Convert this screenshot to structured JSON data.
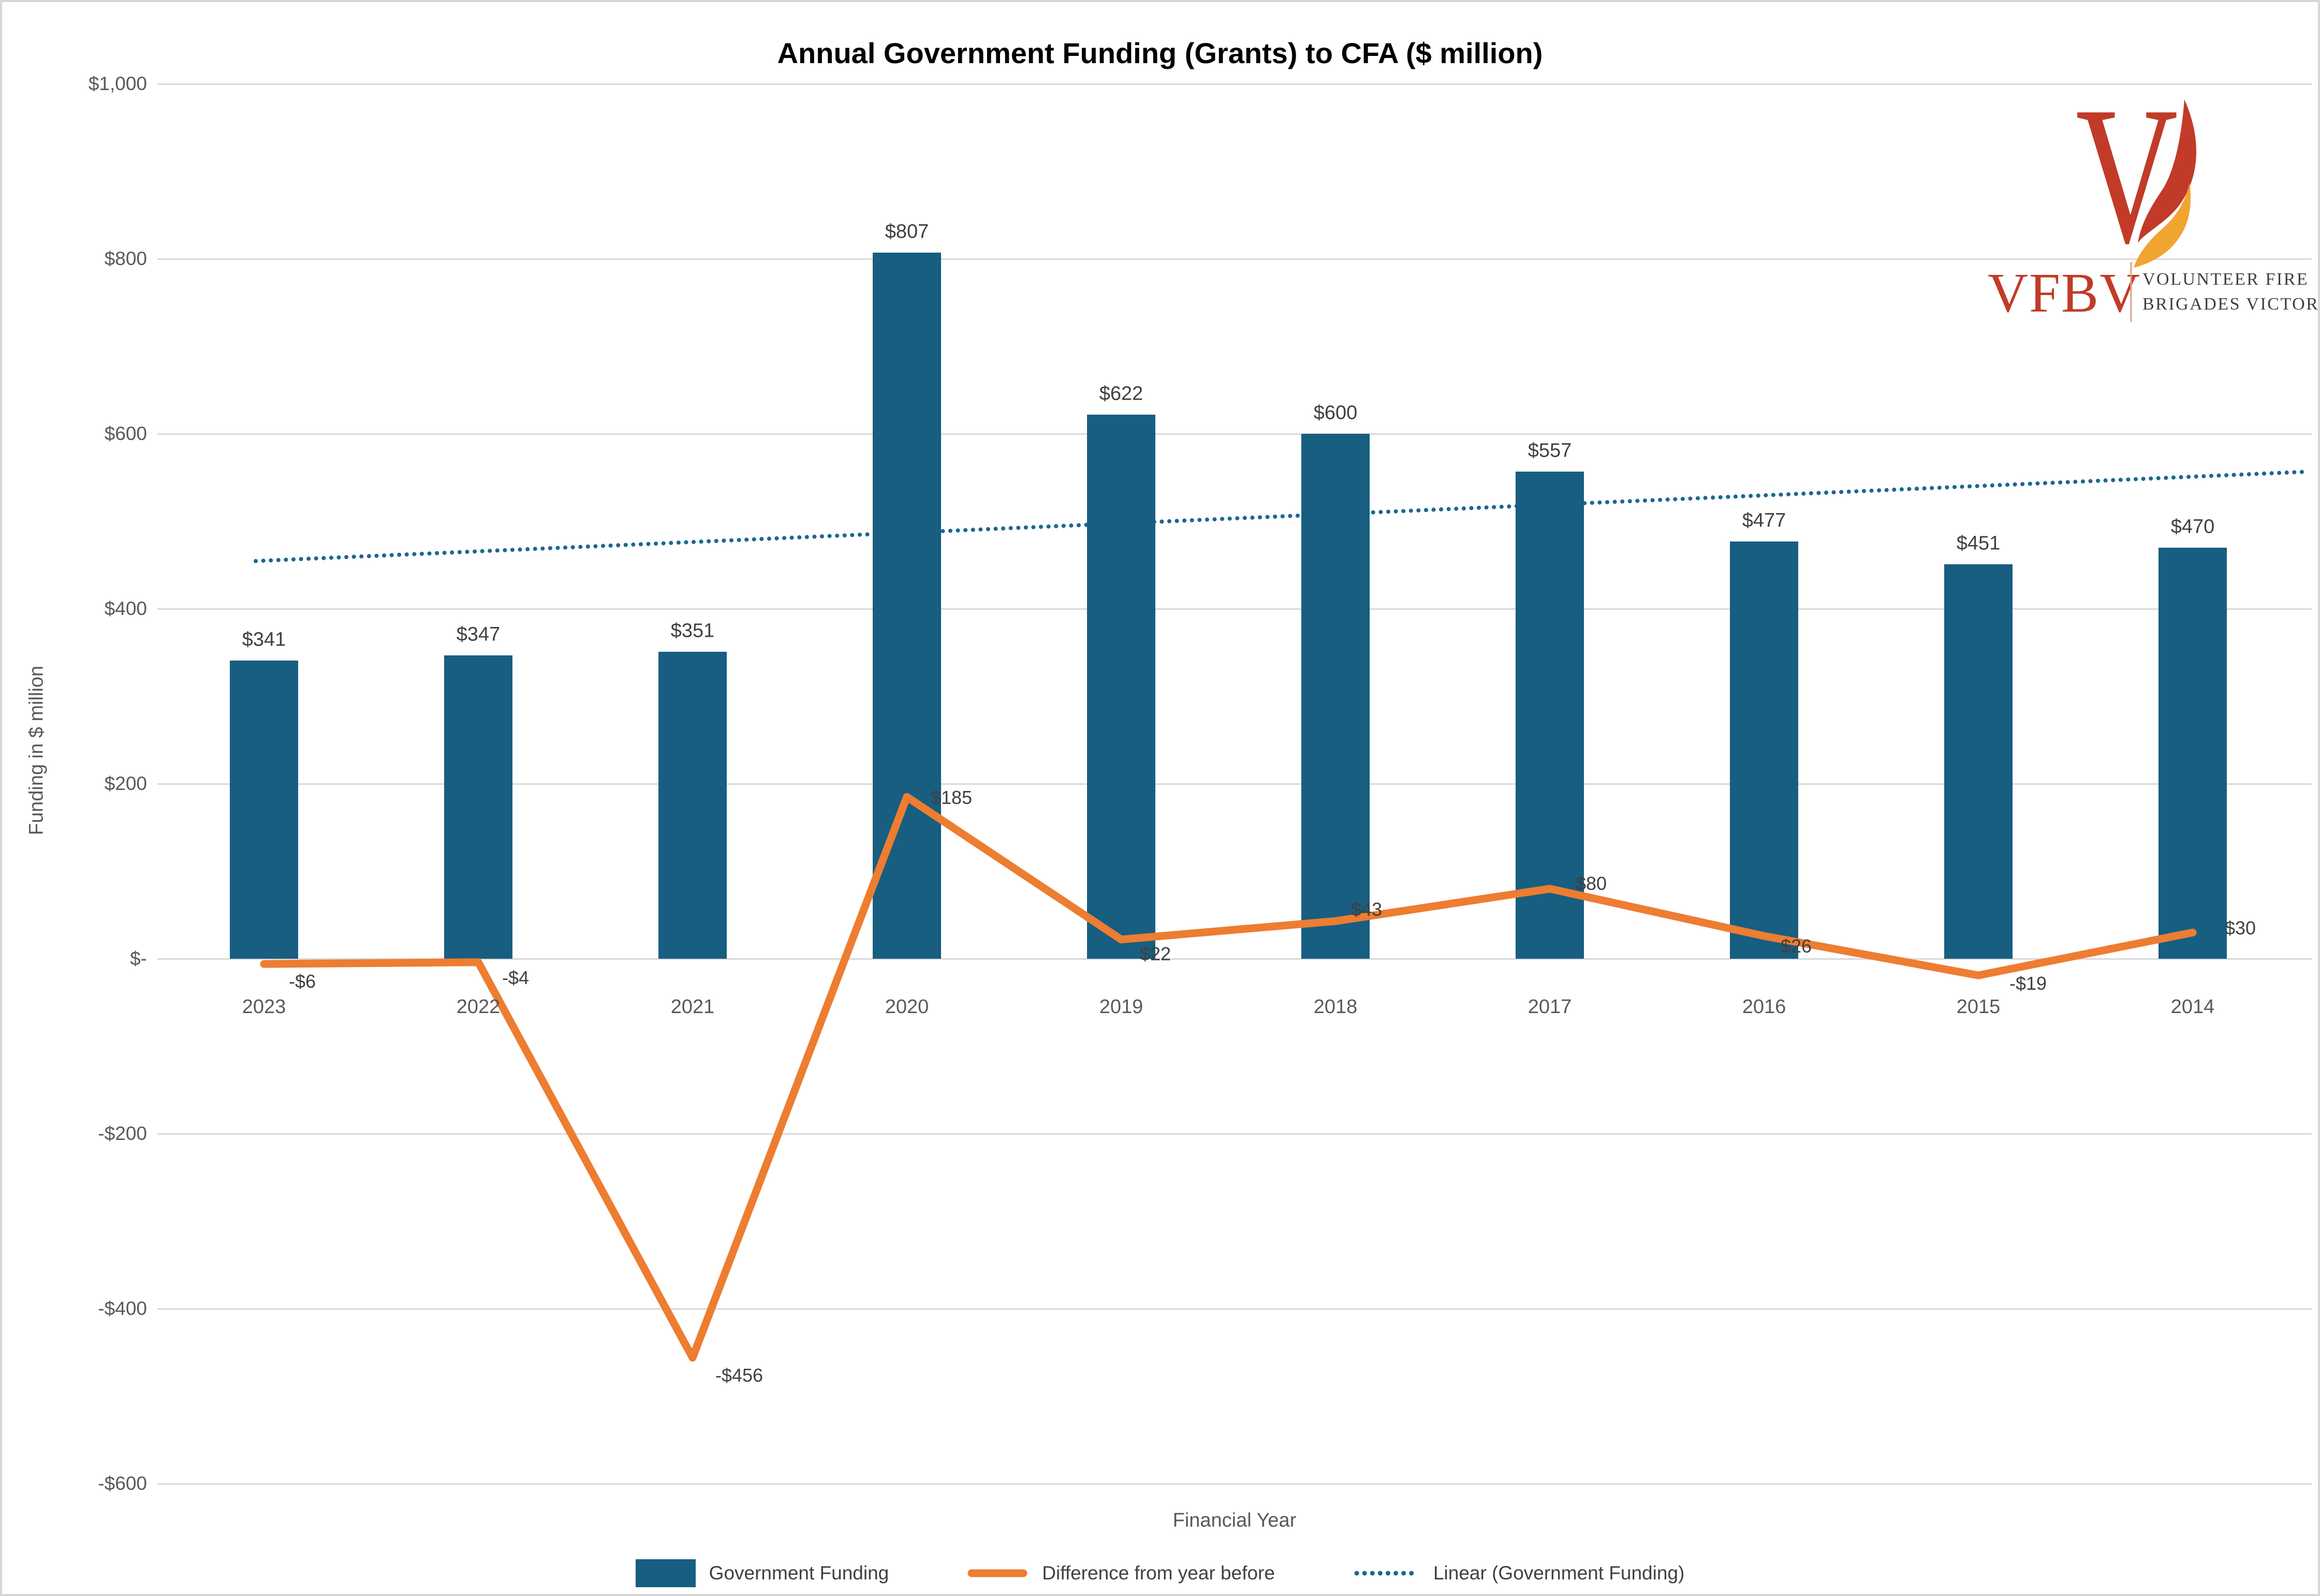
{
  "title": "Annual Government Funding (Grants) to CFA ($ million)",
  "logo": {
    "abbr": "VFBV",
    "name_line1": "VOLUNTEER FIRE",
    "name_line2": "BRIGADES VICTORIA",
    "colors": {
      "red": "#C13B28",
      "orange": "#F2A431",
      "text": "#3F3F3F"
    }
  },
  "legend": {
    "items": [
      "Government Funding",
      "Difference from year before",
      "Linear (Government Funding)"
    ]
  },
  "chart_data": {
    "type": "combo",
    "title": "Annual Government Funding (Grants) to CFA ($ million)",
    "categories": [
      "2023",
      "2022",
      "2021",
      "2020",
      "2019",
      "2018",
      "2017",
      "2016",
      "2015",
      "2014"
    ],
    "series": [
      {
        "name": "Government Funding",
        "type": "bar",
        "color": "#175E81",
        "values": [
          341,
          347,
          351,
          807,
          622,
          600,
          557,
          477,
          451,
          470
        ],
        "labels": [
          "$341",
          "$347",
          "$351",
          "$807",
          "$622",
          "$600",
          "$557",
          "$477",
          "$451",
          "$470"
        ]
      },
      {
        "name": "Difference from year before",
        "type": "line",
        "color": "#ED7D31",
        "values": [
          -6,
          -4,
          -456,
          185,
          22,
          43,
          80,
          26,
          -19,
          30
        ],
        "labels": [
          "-$6",
          "-$4",
          "-$456",
          "$185",
          "$22",
          "$43",
          "$80",
          "$26",
          "-$19",
          "$30"
        ]
      },
      {
        "name": "Linear (Government Funding)",
        "type": "trendline",
        "style": "dotted",
        "color": "#1B6890",
        "start_value": 455,
        "end_value": 551
      }
    ],
    "x_axis": {
      "label": "Financial Year"
    },
    "y_axis": {
      "label": "Funding in $ million",
      "ticks": [
        {
          "label": "$1,000",
          "value": 1000
        },
        {
          "label": "$800",
          "value": 800
        },
        {
          "label": "$600",
          "value": 600
        },
        {
          "label": "$400",
          "value": 400
        },
        {
          "label": "$200",
          "value": 200
        },
        {
          "label": "$-",
          "value": 0
        },
        {
          "label": "-$200",
          "value": -200
        },
        {
          "label": "-$400",
          "value": -400
        },
        {
          "label": "-$600",
          "value": -600
        }
      ]
    },
    "ylim": [
      -600,
      1000
    ],
    "grid": "horizontal",
    "legend_position": "bottom",
    "units": "$ million"
  }
}
